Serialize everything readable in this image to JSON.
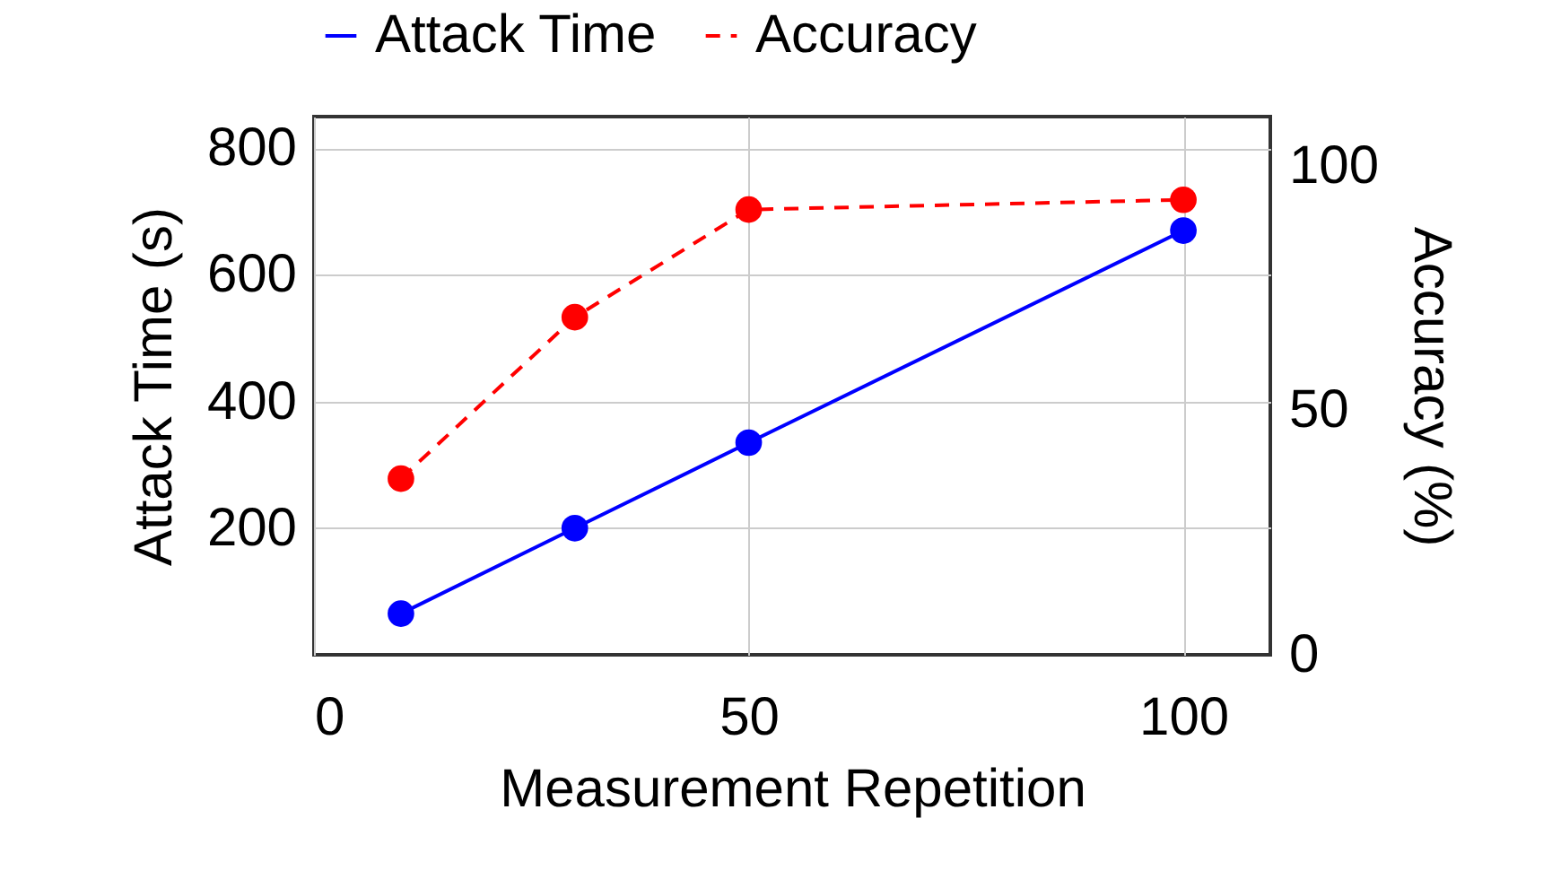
{
  "chart_data": {
    "type": "line",
    "xlabel": "Measurement Repetition",
    "ylabel": "Attack Time (s)",
    "y2label": "Accuracy (%)",
    "x": [
      10,
      30,
      50,
      100
    ],
    "series": [
      {
        "name": "Attack Time",
        "color": "#0000ff",
        "values": [
          65,
          200,
          335,
          670
        ],
        "line_style": "solid"
      },
      {
        "name": "Accuracy",
        "color": "#ff0000",
        "values": [
          36,
          69,
          91,
          93
        ],
        "axis": "y2",
        "line_style": "dashed"
      }
    ],
    "xlim": [
      0,
      110
    ],
    "xticks": [
      0,
      50,
      100
    ],
    "ylim": [
      0,
      850
    ],
    "yticks": [
      200,
      400,
      600,
      800
    ],
    "y2lim": [
      0,
      110
    ],
    "y2ticks": [
      0,
      50,
      100
    ],
    "grid": true,
    "legend": "top",
    "marker": "circle"
  }
}
